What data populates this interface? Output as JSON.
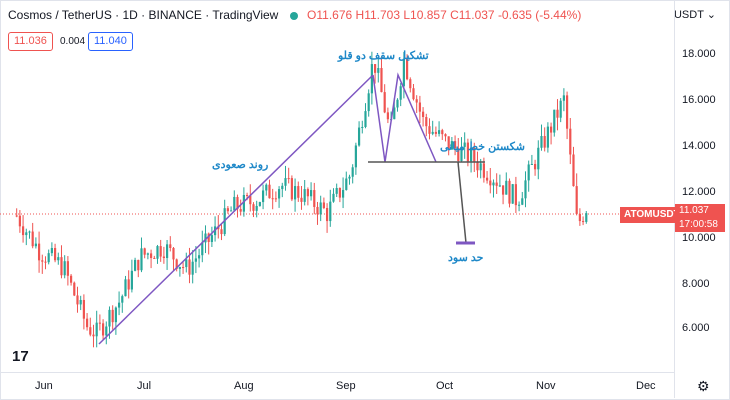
{
  "header": {
    "symbol": "Cosmos / TetherUS",
    "interval": "1D",
    "exchange": "BINANCE",
    "platform": "TradingView",
    "open": "O11.676",
    "high": "H11.703",
    "low": "L10.857",
    "close": "C11.037",
    "change": "-0.635 (-5.44%)"
  },
  "trade": {
    "sell": "11.036",
    "spread": "0.004",
    "buy": "11.040"
  },
  "currency": "USDT ⌄",
  "y_axis": [
    "18.000",
    "16.000",
    "14.000",
    "12.000",
    "10.000",
    "8.000",
    "6.000"
  ],
  "x_axis": [
    "Jun",
    "Jul",
    "Aug",
    "Sep",
    "Oct",
    "Nov",
    "Dec"
  ],
  "current": {
    "pair": "ATOMUSDT",
    "price": "11.037",
    "countdown": "17:00:58"
  },
  "annotations": {
    "uptrend": "روند صعودی",
    "double_top": "تشکیل سقف دو قلو",
    "neckline_break": "شکستن خط میانی",
    "target": "حد سود"
  },
  "icons": {
    "logo": "tradingview-logo-icon",
    "settings": "gear-icon"
  },
  "colors": {
    "up": "#26a69a",
    "down": "#ef5350",
    "trendline": "#7e57c2",
    "annotation": "#1e88c8"
  },
  "chart_data": {
    "type": "candlestick",
    "y_range": [
      4.5,
      19.0
    ],
    "x_range": [
      "2022-05-20",
      "2022-12-08"
    ],
    "series": [
      {
        "date": "2022-05-25",
        "close": 10.6
      },
      {
        "date": "2022-06-01",
        "close": 9.2
      },
      {
        "date": "2022-06-08",
        "close": 8.6
      },
      {
        "date": "2022-06-15",
        "close": 6.3
      },
      {
        "date": "2022-06-18",
        "close": 6.0
      },
      {
        "date": "2022-06-25",
        "close": 7.3
      },
      {
        "date": "2022-07-01",
        "close": 9.0
      },
      {
        "date": "2022-07-08",
        "close": 9.4
      },
      {
        "date": "2022-07-15",
        "close": 8.5
      },
      {
        "date": "2022-07-22",
        "close": 9.7
      },
      {
        "date": "2022-07-29",
        "close": 10.9
      },
      {
        "date": "2022-08-05",
        "close": 11.2
      },
      {
        "date": "2022-08-12",
        "close": 11.8
      },
      {
        "date": "2022-08-19",
        "close": 11.4
      },
      {
        "date": "2022-08-26",
        "close": 10.7
      },
      {
        "date": "2022-09-02",
        "close": 12.2
      },
      {
        "date": "2022-09-09",
        "close": 16.7
      },
      {
        "date": "2022-09-14",
        "close": 13.8
      },
      {
        "date": "2022-09-18",
        "close": 16.7
      },
      {
        "date": "2022-09-24",
        "close": 14.2
      },
      {
        "date": "2022-10-01",
        "close": 13.4
      },
      {
        "date": "2022-10-08",
        "close": 12.9
      },
      {
        "date": "2022-10-15",
        "close": 12.1
      },
      {
        "date": "2022-10-22",
        "close": 11.2
      },
      {
        "date": "2022-10-29",
        "close": 13.2
      },
      {
        "date": "2022-11-05",
        "close": 15.1
      },
      {
        "date": "2022-11-09",
        "close": 10.2
      },
      {
        "date": "2022-11-12",
        "close": 11.0
      }
    ]
  }
}
